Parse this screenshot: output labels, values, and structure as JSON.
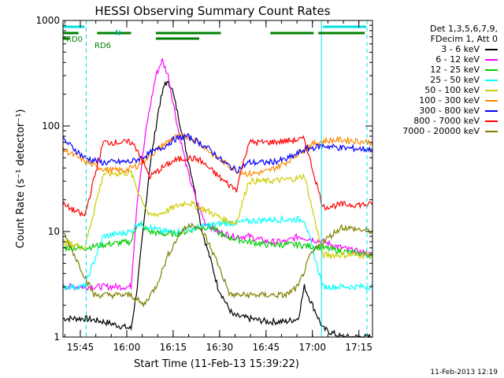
{
  "chart_data": {
    "type": "line",
    "title": "HESSI Observing Summary Count Rates",
    "xlabel": "Start Time (11-Feb-13 15:39:22)",
    "ylabel": "Count Rate (s⁻¹ detector⁻¹)",
    "ylog": true,
    "ylim": [
      1,
      1000
    ],
    "xlim": [
      0,
      100
    ],
    "x_unit": "minutes after 15:39:22",
    "y_ticks": [
      "1",
      "10",
      "100",
      "1000"
    ],
    "x_ticks": [
      {
        "label": "15:45",
        "x": 5.6
      },
      {
        "label": "16:00",
        "x": 20.6
      },
      {
        "label": "16:15",
        "x": 35.6
      },
      {
        "label": "16:30",
        "x": 50.6
      },
      {
        "label": "16:45",
        "x": 65.6
      },
      {
        "label": "17:00",
        "x": 80.6
      },
      {
        "label": "17:15",
        "x": 95.6
      }
    ],
    "legend_header": [
      "Det 1,3,5,6,7,9,",
      "FDecim 1, Att 0"
    ],
    "annotations": {
      "date_stamp": "11-Feb-2013 12:19",
      "flags": {
        "n": "N",
        "rd0": "RD0",
        "rd6": "RD6"
      }
    },
    "gaps": [
      [
        13,
        22
      ],
      [
        78,
        84
      ]
    ],
    "vlines": [
      {
        "x": 7.5,
        "color": "#00e0e0",
        "dash": true
      },
      {
        "x": 83.5,
        "color": "#00e0e0",
        "dash": false
      },
      {
        "x": 98.2,
        "color": "#00e0e0",
        "dash": true
      }
    ],
    "flag_bars": [
      {
        "name": "N",
        "color": "#00e0e0",
        "y": 1.04,
        "segments": [
          [
            0,
            7
          ],
          [
            84,
            98
          ]
        ]
      },
      {
        "name": "RD0",
        "color": "#008000",
        "y": 1.115,
        "segments": [
          [
            0,
            2
          ],
          [
            30,
            44
          ]
        ]
      },
      {
        "name": "RD6",
        "color": "#008000",
        "y": 1.08,
        "segments": [
          [
            0,
            5
          ],
          [
            11,
            22
          ],
          [
            30,
            51
          ],
          [
            67,
            81
          ],
          [
            82.5,
            97.5
          ]
        ]
      }
    ],
    "series": [
      {
        "name": "3 - 6 keV",
        "color": "#000000",
        "points": [
          [
            0,
            1.5
          ],
          [
            7,
            1.5
          ],
          [
            13,
            1.4
          ],
          [
            22,
            1.2
          ],
          [
            24,
            3
          ],
          [
            28,
            40
          ],
          [
            31,
            150
          ],
          [
            33,
            260
          ],
          [
            35,
            240
          ],
          [
            38,
            100
          ],
          [
            42,
            30
          ],
          [
            45,
            10
          ],
          [
            48,
            5
          ],
          [
            50,
            3
          ],
          [
            53,
            2
          ],
          [
            55,
            1.6
          ],
          [
            60,
            1.5
          ],
          [
            66,
            1.4
          ],
          [
            72,
            1.4
          ],
          [
            76,
            1.5
          ],
          [
            78,
            3
          ],
          [
            84,
            1.2
          ],
          [
            90,
            1.0
          ],
          [
            100,
            1.0
          ]
        ]
      },
      {
        "name": "6 - 12 keV",
        "color": "#ff00ff",
        "points": [
          [
            0,
            3
          ],
          [
            7,
            3
          ],
          [
            13,
            3
          ],
          [
            22,
            3
          ],
          [
            24,
            20
          ],
          [
            27,
            100
          ],
          [
            30,
            300
          ],
          [
            32,
            420
          ],
          [
            34,
            300
          ],
          [
            37,
            100
          ],
          [
            40,
            40
          ],
          [
            43,
            20
          ],
          [
            46,
            12
          ],
          [
            50,
            10
          ],
          [
            55,
            9
          ],
          [
            60,
            9
          ],
          [
            66,
            8
          ],
          [
            72,
            8
          ],
          [
            76,
            9
          ],
          [
            84,
            8
          ],
          [
            90,
            7
          ],
          [
            100,
            6
          ]
        ]
      },
      {
        "name": "12 - 25 keV",
        "color": "#00cc00",
        "points": [
          [
            0,
            7
          ],
          [
            7,
            7
          ],
          [
            13,
            7.5
          ],
          [
            22,
            8
          ],
          [
            24,
            12
          ],
          [
            28,
            10
          ],
          [
            32,
            9.5
          ],
          [
            36,
            9.5
          ],
          [
            40,
            10
          ],
          [
            44,
            11
          ],
          [
            48,
            11
          ],
          [
            52,
            9
          ],
          [
            56,
            8.5
          ],
          [
            60,
            8
          ],
          [
            66,
            7.5
          ],
          [
            72,
            7.5
          ],
          [
            76,
            7.5
          ],
          [
            84,
            7
          ],
          [
            90,
            6.5
          ],
          [
            100,
            6
          ]
        ]
      },
      {
        "name": "25 - 50 keV",
        "color": "#00ffff",
        "points": [
          [
            0,
            3
          ],
          [
            7,
            3
          ],
          [
            13,
            9
          ],
          [
            22,
            10
          ],
          [
            24,
            12
          ],
          [
            28,
            11
          ],
          [
            32,
            10
          ],
          [
            36,
            10
          ],
          [
            40,
            10.5
          ],
          [
            44,
            11
          ],
          [
            48,
            11.5
          ],
          [
            52,
            12
          ],
          [
            56,
            12
          ],
          [
            60,
            12.5
          ],
          [
            66,
            13
          ],
          [
            72,
            13
          ],
          [
            76,
            13
          ],
          [
            78,
            13
          ],
          [
            84,
            3
          ],
          [
            90,
            3
          ],
          [
            100,
            3
          ]
        ]
      },
      {
        "name": "50 - 100 keV",
        "color": "#cccc00",
        "points": [
          [
            0,
            8
          ],
          [
            7,
            7
          ],
          [
            13,
            35
          ],
          [
            22,
            36
          ],
          [
            24,
            25
          ],
          [
            28,
            14
          ],
          [
            32,
            15
          ],
          [
            36,
            17
          ],
          [
            40,
            19
          ],
          [
            44,
            17
          ],
          [
            48,
            15
          ],
          [
            52,
            13
          ],
          [
            56,
            12
          ],
          [
            60,
            30
          ],
          [
            66,
            30
          ],
          [
            72,
            31
          ],
          [
            76,
            32
          ],
          [
            78,
            34
          ],
          [
            84,
            6
          ],
          [
            90,
            6
          ],
          [
            100,
            6
          ]
        ]
      },
      {
        "name": "100 - 300 keV",
        "color": "#ff8800",
        "points": [
          [
            0,
            60
          ],
          [
            5,
            50
          ],
          [
            10,
            42
          ],
          [
            15,
            38
          ],
          [
            20,
            38
          ],
          [
            24,
            42
          ],
          [
            28,
            52
          ],
          [
            32,
            65
          ],
          [
            36,
            78
          ],
          [
            40,
            80
          ],
          [
            44,
            70
          ],
          [
            48,
            55
          ],
          [
            52,
            45
          ],
          [
            56,
            38
          ],
          [
            60,
            35
          ],
          [
            66,
            37
          ],
          [
            72,
            45
          ],
          [
            76,
            55
          ],
          [
            80,
            66
          ],
          [
            84,
            72
          ],
          [
            90,
            74
          ],
          [
            100,
            70
          ]
        ]
      },
      {
        "name": "300 - 800 keV",
        "color": "#0000ff",
        "points": [
          [
            0,
            75
          ],
          [
            7,
            50
          ],
          [
            13,
            45
          ],
          [
            22,
            46
          ],
          [
            24,
            48
          ],
          [
            28,
            55
          ],
          [
            32,
            62
          ],
          [
            36,
            75
          ],
          [
            40,
            80
          ],
          [
            44,
            70
          ],
          [
            48,
            58
          ],
          [
            52,
            45
          ],
          [
            56,
            38
          ],
          [
            60,
            45
          ],
          [
            66,
            45
          ],
          [
            72,
            48
          ],
          [
            76,
            55
          ],
          [
            78,
            60
          ],
          [
            84,
            65
          ],
          [
            90,
            62
          ],
          [
            100,
            60
          ]
        ]
      },
      {
        "name": "800 - 7000 keV",
        "color": "#ff0000",
        "points": [
          [
            0,
            18
          ],
          [
            7,
            14
          ],
          [
            13,
            70
          ],
          [
            22,
            70
          ],
          [
            24,
            60
          ],
          [
            28,
            33
          ],
          [
            32,
            40
          ],
          [
            36,
            47
          ],
          [
            40,
            50
          ],
          [
            44,
            48
          ],
          [
            48,
            38
          ],
          [
            52,
            30
          ],
          [
            56,
            25
          ],
          [
            60,
            70
          ],
          [
            66,
            70
          ],
          [
            72,
            72
          ],
          [
            76,
            74
          ],
          [
            78,
            75
          ],
          [
            84,
            17
          ],
          [
            90,
            18
          ],
          [
            100,
            18
          ]
        ]
      },
      {
        "name": "7000 - 20000 keV",
        "color": "#808000",
        "points": [
          [
            0,
            10
          ],
          [
            5,
            5
          ],
          [
            10,
            2.5
          ],
          [
            22,
            2.5
          ],
          [
            26,
            2
          ],
          [
            30,
            3
          ],
          [
            34,
            6
          ],
          [
            38,
            10
          ],
          [
            42,
            12
          ],
          [
            46,
            9
          ],
          [
            50,
            5
          ],
          [
            54,
            2.5
          ],
          [
            60,
            2.5
          ],
          [
            66,
            2.5
          ],
          [
            72,
            2.5
          ],
          [
            76,
            3
          ],
          [
            80,
            6
          ],
          [
            84,
            8
          ],
          [
            90,
            11
          ],
          [
            100,
            10
          ]
        ]
      }
    ]
  }
}
